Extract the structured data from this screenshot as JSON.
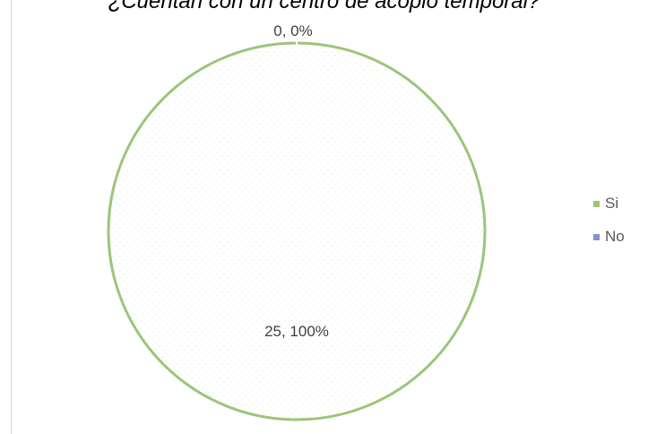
{
  "chart_data": {
    "type": "pie",
    "title": "¿Cuentan con un centro de acopio temporal?",
    "slices": [
      {
        "name": "Si",
        "value": 25,
        "percent": "100%",
        "label": "25, 100%",
        "color": "#9bc57a"
      },
      {
        "name": "No",
        "value": 0,
        "percent": "0%",
        "label": "0, 0%",
        "color": "#7f96c9"
      }
    ],
    "legend_position": "right"
  }
}
